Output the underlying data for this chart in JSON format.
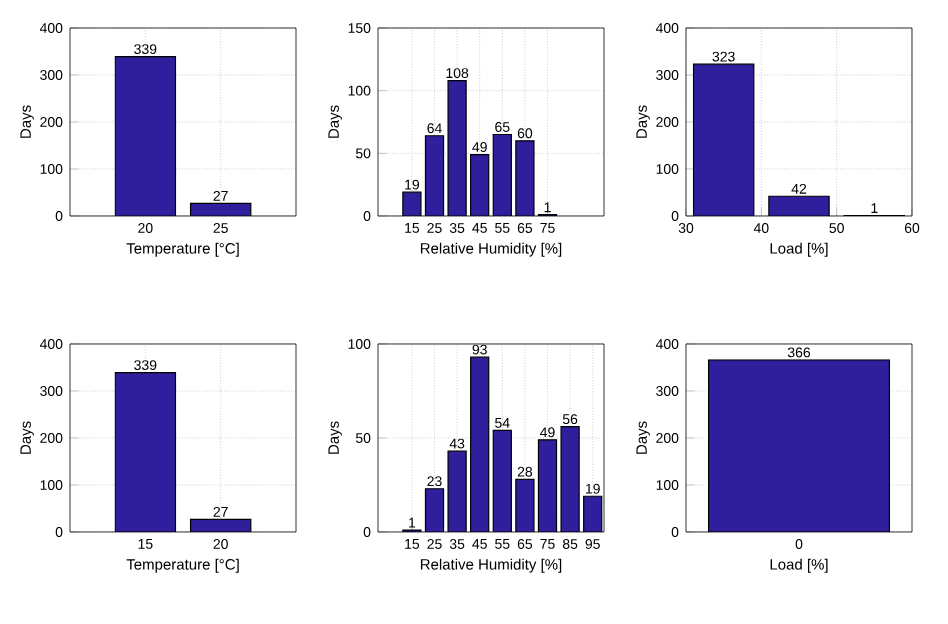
{
  "chart_data": [
    {
      "type": "bar",
      "x": [
        20,
        25
      ],
      "values": [
        339,
        27
      ],
      "color": "#2f1f9c",
      "xlim": [
        15,
        30
      ],
      "xticks": [
        20,
        25
      ],
      "ylim": [
        0,
        400
      ],
      "yticks": [
        0,
        100,
        200,
        300,
        400
      ],
      "xlabel": "Temperature [°C]",
      "ylabel": "Days",
      "data_labels": true,
      "grid": true
    },
    {
      "type": "bar",
      "x": [
        15,
        25,
        35,
        45,
        55,
        65,
        75
      ],
      "values": [
        19,
        64,
        108,
        49,
        65,
        60,
        1
      ],
      "color": "#2f1f9c",
      "xlim": [
        0,
        100
      ],
      "xticks": [
        15,
        25,
        35,
        45,
        55,
        65,
        75
      ],
      "ylim": [
        0,
        150
      ],
      "yticks": [
        0,
        50,
        100,
        150
      ],
      "xlabel": "Relative Humidity [%]",
      "ylabel": "Days",
      "data_labels": true,
      "grid": true
    },
    {
      "type": "histogram",
      "bins": [
        30,
        40,
        50,
        60
      ],
      "values": [
        323,
        42,
        1
      ],
      "color": "#2f1f9c",
      "xlim": [
        30,
        60
      ],
      "xticks": [
        30,
        40,
        50,
        60
      ],
      "ylim": [
        0,
        400
      ],
      "yticks": [
        0,
        100,
        200,
        300,
        400
      ],
      "xlabel": "Load [%]",
      "ylabel": "Days",
      "data_labels": true,
      "grid": true
    },
    {
      "type": "bar",
      "x": [
        15,
        20
      ],
      "values": [
        339,
        27
      ],
      "color": "#2f1f9c",
      "xlim": [
        10,
        25
      ],
      "xticks": [
        15,
        20
      ],
      "ylim": [
        0,
        400
      ],
      "yticks": [
        0,
        100,
        200,
        300,
        400
      ],
      "xlabel": "Temperature [°C]",
      "ylabel": "Days",
      "data_labels": true,
      "grid": true
    },
    {
      "type": "bar",
      "x": [
        15,
        25,
        35,
        45,
        55,
        65,
        75,
        85,
        95
      ],
      "values": [
        1,
        23,
        43,
        93,
        54,
        28,
        49,
        56,
        19
      ],
      "color": "#2f1f9c",
      "xlim": [
        0,
        100
      ],
      "xticks": [
        15,
        25,
        35,
        45,
        55,
        65,
        75,
        85,
        95
      ],
      "ylim": [
        0,
        100
      ],
      "yticks": [
        0,
        50,
        100
      ],
      "xlabel": "Relative Humidity [%]",
      "ylabel": "Days",
      "data_labels": true,
      "grid": true
    },
    {
      "type": "bar",
      "categories": [
        "0"
      ],
      "values": [
        366
      ],
      "color": "#2f1f9c",
      "ylim": [
        0,
        400
      ],
      "yticks": [
        0,
        100,
        200,
        300,
        400
      ],
      "xlabel": "Load [%]",
      "ylabel": "Days",
      "data_labels": true,
      "grid": true
    }
  ]
}
